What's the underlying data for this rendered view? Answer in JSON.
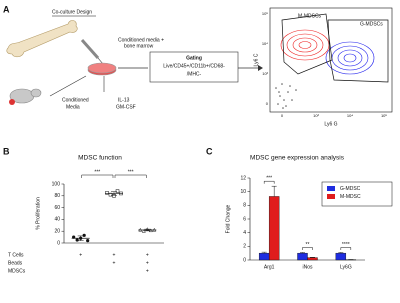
{
  "panel_a": {
    "label": "A",
    "title": "Co-culture Design",
    "media_label": [
      "Conditioned media +",
      "bone marrow"
    ],
    "cytokines": [
      "IL-13",
      "GM-CSF"
    ],
    "conditioned": [
      "Conditioned",
      "Media"
    ],
    "gating": {
      "title": "Gating",
      "text": [
        "Live/CD45+/CD11b+/CD68-",
        "/MHC-"
      ]
    },
    "flow": {
      "x_label": "Ly6 G",
      "y_label": "Ly6 C",
      "gates": [
        "M-MDSCs",
        "G-MDSCs"
      ],
      "xticks": [
        "0",
        "10³",
        "10⁴",
        "10⁵"
      ],
      "yticks": [
        "0",
        "10³",
        "10⁴",
        "10⁵"
      ]
    }
  },
  "chart_data": [
    {
      "type": "dot",
      "label": "B",
      "title": "MDSC function",
      "y_label": "% Proliferation",
      "categories": [
        null,
        null,
        null
      ],
      "values": [
        [
          10,
          5,
          8,
          13,
          4
        ],
        [
          85,
          82,
          80,
          88,
          84
        ],
        [
          22,
          20,
          23,
          21,
          22
        ]
      ],
      "means": [
        8,
        84,
        22
      ],
      "errors": [
        4,
        3,
        1.5
      ],
      "ylim": [
        0,
        100
      ],
      "yticks": [
        0,
        20,
        40,
        60,
        80,
        100
      ],
      "significance": [
        "***",
        "***"
      ],
      "conditions": [
        {
          "name": "T Cells",
          "marks": [
            "+",
            "+",
            "+"
          ]
        },
        {
          "name": "Beads",
          "marks": [
            null,
            "+",
            "+"
          ]
        },
        {
          "name": "MDSCs",
          "marks": [
            null,
            null,
            "+"
          ]
        }
      ]
    },
    {
      "type": "bar",
      "label": "C",
      "title": "MDSC gene expression analysis",
      "y_label": "Fold Change",
      "categories": [
        "Arg1",
        "iNos",
        "Ly6G"
      ],
      "series": [
        {
          "name": "G-MDSC",
          "color": "#1f2de0",
          "values": [
            1,
            1,
            1
          ],
          "errors": [
            0.15,
            0.1,
            0.1
          ]
        },
        {
          "name": "M-MDSC",
          "color": "#e01c1c",
          "values": [
            9.3,
            0.35,
            0.05
          ],
          "errors": [
            1.5,
            0.05,
            0.02
          ]
        }
      ],
      "ylim": [
        0,
        12
      ],
      "yticks": [
        0,
        2,
        4,
        6,
        8,
        10,
        12
      ],
      "significance": [
        "***",
        "**",
        "****"
      ],
      "legend": "upper right"
    }
  ]
}
